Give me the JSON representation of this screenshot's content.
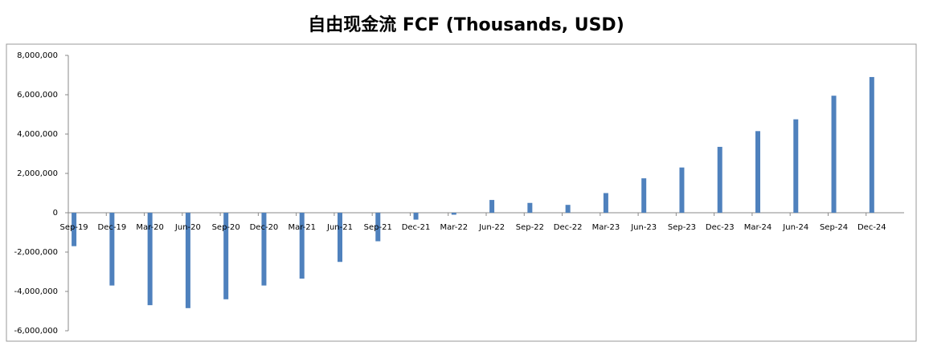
{
  "chart_data": {
    "type": "bar",
    "title": "自由现金流 FCF (Thousands, USD)",
    "categories": [
      "Sep-19",
      "Dec-19",
      "Mar-20",
      "Jun-20",
      "Sep-20",
      "Dec-20",
      "Mar-21",
      "Jun-21",
      "Sep-21",
      "Dec-21",
      "Mar-22",
      "Jun-22",
      "Sep-22",
      "Dec-22",
      "Mar-23",
      "Jun-23",
      "Sep-23",
      "Dec-23",
      "Mar-24",
      "Jun-24",
      "Sep-24",
      "Dec-24"
    ],
    "values": [
      -1700000,
      -3700000,
      -4700000,
      -4850000,
      -4400000,
      -3700000,
      -3350000,
      -2500000,
      -1450000,
      -350000,
      -100000,
      650000,
      500000,
      400000,
      1000000,
      1750000,
      2300000,
      3350000,
      4150000,
      4750000,
      5950000,
      6900000
    ],
    "color": "#4f81bd",
    "ylim": [
      -6000000,
      8000000
    ],
    "yticks": [
      {
        "value": -6000000,
        "label": "-6,000,000"
      },
      {
        "value": -4000000,
        "label": "-4,000,000"
      },
      {
        "value": -2000000,
        "label": "-2,000,000"
      },
      0,
      {
        "value": 2000000,
        "label": "2,000,000"
      },
      {
        "value": 4000000,
        "label": "4,000,000"
      },
      {
        "value": 6000000,
        "label": "6,000,000"
      },
      {
        "value": 8000000,
        "label": "8,000,000"
      }
    ],
    "grid": false
  }
}
